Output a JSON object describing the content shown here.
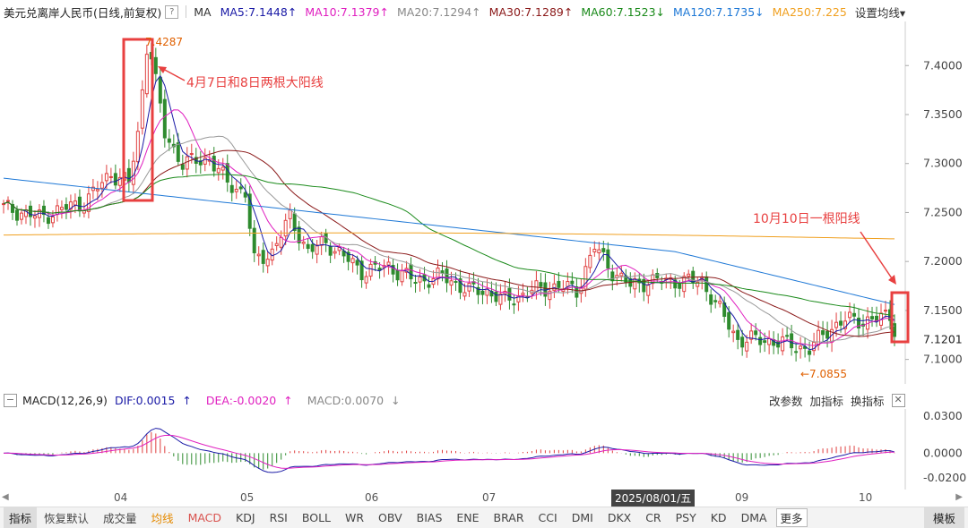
{
  "header": {
    "title": "美元兑离岸人民币",
    "mode": "(日线,前复权)",
    "help": "?",
    "ma_label": "MA",
    "ma_items": [
      {
        "text": "MA5:7.1448",
        "arrow": "↑",
        "color": "#1a1aa6"
      },
      {
        "text": "MA10:7.1379",
        "arrow": "↑",
        "color": "#e020c0"
      },
      {
        "text": "MA20:7.1294",
        "arrow": "↑",
        "color": "#888888"
      },
      {
        "text": "MA30:7.1289",
        "arrow": "↑",
        "color": "#8b1a1a"
      },
      {
        "text": "MA60:7.1523",
        "arrow": "↓",
        "color": "#1a8a1a"
      },
      {
        "text": "MA120:7.1735",
        "arrow": "↓",
        "color": "#1e78d6"
      },
      {
        "text": "MA250:7.225",
        "arrow": "",
        "color": "#f0a020"
      }
    ],
    "settings": "设置均线",
    "settings_arrow": "▾"
  },
  "annotations": {
    "peak_label": "7.4287",
    "low_label": "←7.0855",
    "last_price": "7.1201",
    "note1": "4月7日和8日两根大阳线",
    "note2": "10月10日一根阳线"
  },
  "macd_header": {
    "title": "MACD(12,26,9)",
    "dif": "DIF:0.0015",
    "dif_arrow": "↑",
    "dea": "DEA:-0.0020",
    "dea_arrow": "↑",
    "macd": "MACD:0.0070",
    "macd_arrow": "↓",
    "btn_params": "改参数",
    "btn_add": "加指标",
    "btn_switch": "换指标",
    "close": "✕"
  },
  "x_axis": {
    "labels": [
      "04",
      "05",
      "06",
      "07",
      "09",
      "10"
    ],
    "crosshair_date": "2025/08/01/五",
    "scroll_left": "◀",
    "scroll_right": "▶"
  },
  "bottom_tabs": {
    "items": [
      "指标",
      "恢复默认",
      "成交量",
      "均线",
      "MACD",
      "KDJ",
      "RSI",
      "BOLL",
      "WR",
      "OBV",
      "BIAS",
      "ENE",
      "BRAR",
      "CCI",
      "DMI",
      "DKX",
      "CR",
      "PSY",
      "KD",
      "DMA"
    ],
    "more": "更多",
    "template": "模板"
  },
  "colors": {
    "up": "#e04040",
    "down": "#2e8b2e",
    "ma5": "#1a1aa6",
    "ma10": "#e020c0",
    "ma20": "#999999",
    "ma30": "#8b1a1a",
    "ma60": "#1a8a1a",
    "ma120": "#1e78d6",
    "ma250": "#f0a020",
    "annotation": "#e84040"
  },
  "chart_data": [
    {
      "type": "candlestick",
      "title": "美元兑离岸人民币",
      "ylim": [
        7.075,
        7.445
      ],
      "yticks": [
        7.1,
        7.15,
        7.2,
        7.25,
        7.3,
        7.35,
        7.4
      ],
      "ytick_labels": [
        "7.1000",
        "7.1500",
        "7.2000",
        "7.2500",
        "7.3000",
        "7.3500",
        "7.4000"
      ],
      "period": "2025-03 to 2025-10",
      "annotated_high": 7.4287,
      "annotated_low": 7.0855,
      "last_close": 7.1201,
      "ma_latest": {
        "MA5": 7.1448,
        "MA10": 7.1379,
        "MA20": 7.1294,
        "MA30": 7.1289,
        "MA60": 7.1523,
        "MA120": 7.1735,
        "MA250": 7.225
      }
    },
    {
      "type": "bar",
      "title": "MACD(12,26,9)",
      "ylim": [
        -0.026,
        0.036
      ],
      "yticks": [
        -0.02,
        0.0,
        0.03
      ],
      "ytick_labels": [
        "-0.0200",
        "0.0000",
        "0.0300"
      ],
      "latest": {
        "DIF": 0.0015,
        "DEA": -0.002,
        "MACD": 0.007
      }
    }
  ]
}
